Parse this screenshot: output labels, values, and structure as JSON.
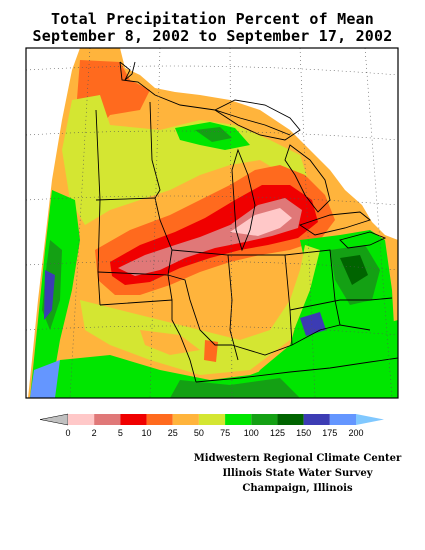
{
  "title": {
    "line1": "Total Precipitation Percent of Mean",
    "line2": "September 8, 2002 to September 17, 2002"
  },
  "legend": {
    "labels": [
      "0",
      "2",
      "5",
      "10",
      "25",
      "50",
      "75",
      "100",
      "125",
      "150",
      "175",
      "200"
    ],
    "colors": [
      "#c0c0c0",
      "#ffc8c8",
      "#e07878",
      "#f00000",
      "#ff6a1e",
      "#ffb43c",
      "#d4e632",
      "#00e600",
      "#14a014",
      "#006400",
      "#3c3cb4",
      "#6496ff",
      "#80c8ff"
    ]
  },
  "credits": {
    "line1": "Midwestern Regional Climate Center",
    "line2": "Illinois State Water Survey",
    "line3": "Champaign, Illinois"
  }
}
